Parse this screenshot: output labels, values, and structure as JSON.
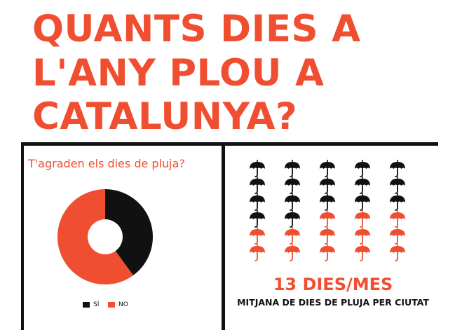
{
  "title": {
    "lines": [
      "QUANTS DIES A",
      "L'ANY PLOU A",
      "CATALUNYA?"
    ]
  },
  "colors": {
    "accent": "#f04e30",
    "dark": "#111111"
  },
  "chart_data": [
    {
      "type": "pie",
      "subtype": "donut",
      "title": "T'agraden els dies de pluja?",
      "categories": [
        "SÍ",
        "NO"
      ],
      "values": [
        40,
        60
      ],
      "colors": [
        "#111111",
        "#f04e30"
      ],
      "legend": "bottom"
    },
    {
      "type": "pictogram",
      "icon": "umbrella-icon",
      "columns": 5,
      "rows": 6,
      "total_icons": 30,
      "highlighted_icons": 13,
      "highlight_color": "#f04e30",
      "base_color": "#111111",
      "headline": "13 DIES/MES",
      "caption": "MITJANA DE DIES DE PLUJA PER CIUTAT"
    }
  ]
}
